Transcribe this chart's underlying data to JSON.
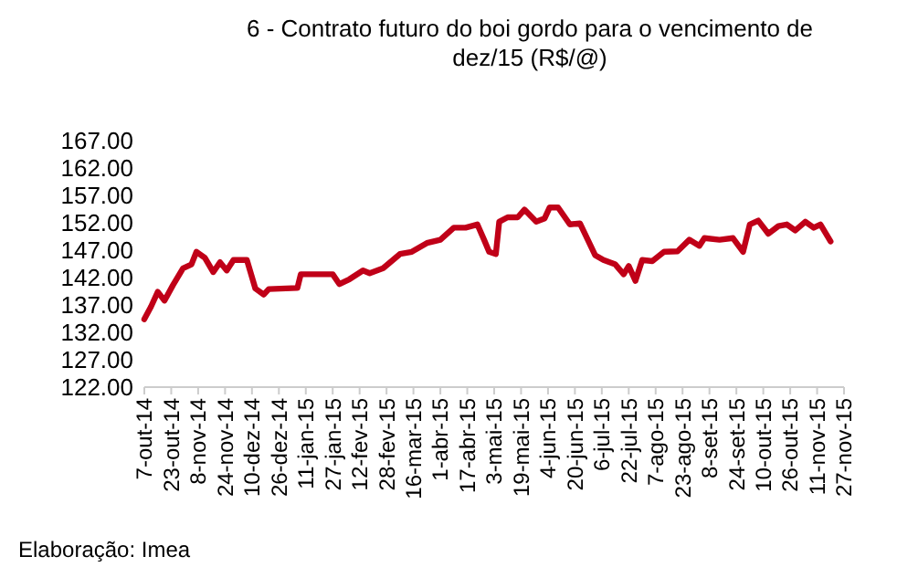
{
  "chart_data": {
    "type": "line",
    "title": "6 - Contrato futuro do boi gordo para o vencimento de dez/15 (R$/@)",
    "annotations": [
      "Elaboração: Imea"
    ],
    "x": [
      "2014-10-07",
      "2014-10-11",
      "2014-10-15",
      "2014-10-19",
      "2014-10-24",
      "2014-10-30",
      "2014-11-04",
      "2014-11-07",
      "2014-11-12",
      "2014-11-17",
      "2014-11-21",
      "2014-11-25",
      "2014-11-29",
      "2014-12-07",
      "2014-12-12",
      "2014-12-17",
      "2014-12-20",
      "2015-01-06",
      "2015-01-08",
      "2015-01-27",
      "2015-01-31",
      "2015-02-06",
      "2015-02-14",
      "2015-02-18",
      "2015-02-26",
      "2015-03-08",
      "2015-03-15",
      "2015-03-24",
      "2015-04-01",
      "2015-04-09",
      "2015-04-16",
      "2015-04-23",
      "2015-04-27",
      "2015-04-30",
      "2015-05-04",
      "2015-05-06",
      "2015-05-11",
      "2015-05-17",
      "2015-05-21",
      "2015-05-28",
      "2015-06-02",
      "2015-06-05",
      "2015-06-10",
      "2015-06-17",
      "2015-06-23",
      "2015-07-02",
      "2015-07-07",
      "2015-07-14",
      "2015-07-19",
      "2015-07-22",
      "2015-07-26",
      "2015-07-30",
      "2015-08-05",
      "2015-08-12",
      "2015-08-20",
      "2015-08-27",
      "2015-09-02",
      "2015-09-05",
      "2015-09-14",
      "2015-09-22",
      "2015-09-28",
      "2015-10-02",
      "2015-10-07",
      "2015-10-13",
      "2015-10-19",
      "2015-10-24",
      "2015-10-29",
      "2015-11-04",
      "2015-11-09",
      "2015-11-13",
      "2015-11-19"
    ],
    "series": [
      {
        "color": "#c00018",
        "values": [
          134.4,
          136.7,
          139.4,
          137.8,
          140.6,
          143.7,
          144.4,
          146.7,
          145.6,
          143,
          144.8,
          143.3,
          145.2,
          145.2,
          140,
          138.9,
          139.9,
          140.1,
          142.6,
          142.6,
          140.8,
          141.7,
          143.3,
          142.8,
          143.7,
          146.3,
          146.7,
          148.3,
          148.9,
          151.1,
          151.1,
          151.7,
          148.9,
          146.7,
          146.3,
          152.2,
          153,
          153,
          154.4,
          152.2,
          152.8,
          154.8,
          154.8,
          151.7,
          151.9,
          146.1,
          145.2,
          144.4,
          142.6,
          144.1,
          141.4,
          145.2,
          145,
          146.7,
          146.8,
          148.9,
          147.8,
          149.2,
          148.9,
          149.2,
          146.7,
          151.7,
          152.4,
          150,
          151.4,
          151.7,
          150.6,
          152.2,
          151.1,
          151.7,
          148.6
        ]
      }
    ],
    "xlim": [
      "2014-10-07",
      "2015-11-27"
    ],
    "xticks": [
      {
        "value": "2014-10-07",
        "label": "7-out-14"
      },
      {
        "value": "2014-10-23",
        "label": "23-out-14"
      },
      {
        "value": "2014-11-08",
        "label": "8-nov-14"
      },
      {
        "value": "2014-11-24",
        "label": "24-nov-14"
      },
      {
        "value": "2014-12-10",
        "label": "10-dez-14"
      },
      {
        "value": "2014-12-26",
        "label": "26-dez-14"
      },
      {
        "value": "2015-01-11",
        "label": "11-jan-15"
      },
      {
        "value": "2015-01-27",
        "label": "27-jan-15"
      },
      {
        "value": "2015-02-12",
        "label": "12-fev-15"
      },
      {
        "value": "2015-02-28",
        "label": "28-fev-15"
      },
      {
        "value": "2015-03-16",
        "label": "16-mar-15"
      },
      {
        "value": "2015-04-01",
        "label": "1-abr-15"
      },
      {
        "value": "2015-04-17",
        "label": "17-abr-15"
      },
      {
        "value": "2015-05-03",
        "label": "3-mai-15"
      },
      {
        "value": "2015-05-19",
        "label": "19-mai-15"
      },
      {
        "value": "2015-06-04",
        "label": "4-jun-15"
      },
      {
        "value": "2015-06-20",
        "label": "20-jun-15"
      },
      {
        "value": "2015-07-06",
        "label": "6-jul-15"
      },
      {
        "value": "2015-07-22",
        "label": "22-jul-15"
      },
      {
        "value": "2015-08-07",
        "label": "7-ago-15"
      },
      {
        "value": "2015-08-23",
        "label": "23-ago-15"
      },
      {
        "value": "2015-09-08",
        "label": "8-set-15"
      },
      {
        "value": "2015-09-24",
        "label": "24-set-15"
      },
      {
        "value": "2015-10-10",
        "label": "10-out-15"
      },
      {
        "value": "2015-10-26",
        "label": "26-out-15"
      },
      {
        "value": "2015-11-11",
        "label": "11-nov-15"
      },
      {
        "value": "2015-11-27",
        "label": "27-nov-15"
      }
    ],
    "ylim": [
      122,
      167
    ],
    "yticks": [
      {
        "value": 122,
        "label": "122.00"
      },
      {
        "value": 127,
        "label": "127.00"
      },
      {
        "value": 132,
        "label": "132.00"
      },
      {
        "value": 137,
        "label": "137.00"
      },
      {
        "value": 142,
        "label": "142.00"
      },
      {
        "value": 147,
        "label": "147.00"
      },
      {
        "value": 152,
        "label": "152.00"
      },
      {
        "value": 157,
        "label": "157.00"
      },
      {
        "value": 162,
        "label": "162.00"
      },
      {
        "value": 167,
        "label": "167.00"
      }
    ],
    "grid": false,
    "line_style": "solid",
    "marker": "none"
  }
}
